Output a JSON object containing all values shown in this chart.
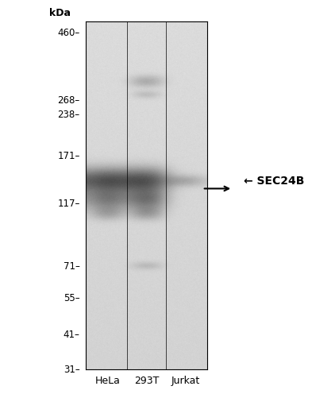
{
  "kda_labels": [
    "460",
    "268",
    "238",
    "171",
    "117",
    "71",
    "55",
    "41",
    "31"
  ],
  "kda_positions": [
    460,
    268,
    238,
    171,
    117,
    71,
    55,
    41,
    31
  ],
  "lane_labels": [
    "HeLa",
    "293T",
    "Jurkat"
  ],
  "annotation_label": "← SEC24B",
  "blot_bg_color": "#d8d5d0",
  "panel_bg": "#ffffff",
  "kda_unit": "kDa",
  "fig_width": 3.49,
  "fig_height": 5.03
}
